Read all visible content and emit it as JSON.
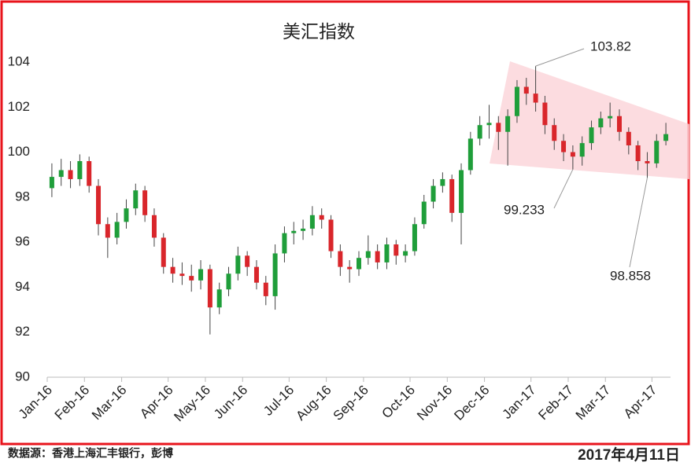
{
  "chart_data": {
    "type": "candlestick",
    "title": "美汇指数",
    "categories": [
      "Jan-16",
      null,
      null,
      null,
      "Feb-16",
      null,
      null,
      null,
      "Mar-16",
      null,
      null,
      null,
      null,
      "Apr-16",
      null,
      null,
      null,
      "May-16",
      null,
      null,
      null,
      "Jun-16",
      null,
      null,
      null,
      null,
      "Jul-16",
      null,
      null,
      null,
      "Aug-16",
      null,
      null,
      null,
      "Sep-16",
      null,
      null,
      null,
      null,
      "Oct-16",
      null,
      null,
      null,
      "Nov-16",
      null,
      null,
      null,
      "Dec-16",
      null,
      null,
      null,
      null,
      "Jan-17",
      null,
      null,
      null,
      "Feb-17",
      null,
      null,
      null,
      "Mar-17",
      null,
      null,
      null,
      null,
      "Apr-17",
      null
    ],
    "open": [
      98.4,
      98.9,
      99.2,
      98.8,
      99.6,
      98.5,
      96.8,
      96.2,
      96.9,
      97.5,
      98.3,
      97.2,
      96.2,
      94.9,
      94.6,
      94.5,
      94.3,
      94.8,
      93.1,
      93.9,
      94.6,
      95.4,
      94.9,
      94.2,
      93.6,
      95.5,
      96.4,
      96.5,
      96.6,
      97.2,
      97.0,
      95.6,
      94.9,
      94.8,
      95.3,
      95.6,
      95.1,
      95.9,
      95.4,
      95.6,
      96.8,
      97.8,
      98.5,
      98.8,
      97.3,
      99.2,
      100.6,
      101.2,
      101.3,
      100.9,
      101.6,
      102.9,
      102.6,
      102.2,
      101.2,
      100.5,
      100.0,
      99.8,
      100.4,
      101.1,
      101.5,
      101.6,
      100.9,
      100.3,
      99.6,
      99.5,
      100.5
    ],
    "high": [
      99.5,
      99.7,
      99.6,
      99.9,
      99.8,
      98.8,
      97.1,
      97.3,
      97.9,
      98.6,
      98.5,
      97.5,
      96.4,
      95.3,
      95.1,
      95.0,
      95.2,
      95.0,
      94.2,
      94.9,
      95.8,
      95.6,
      95.2,
      94.5,
      95.9,
      96.7,
      96.9,
      97.0,
      97.6,
      97.5,
      97.2,
      95.9,
      95.2,
      95.6,
      96.3,
      95.9,
      96.2,
      96.1,
      95.9,
      97.1,
      98.1,
      98.8,
      99.1,
      99.0,
      99.5,
      100.9,
      101.6,
      102.1,
      101.6,
      101.9,
      103.2,
      103.3,
      103.82,
      102.5,
      101.5,
      100.8,
      100.3,
      100.7,
      101.4,
      101.8,
      102.2,
      101.9,
      101.1,
      100.5,
      100.0,
      100.8,
      101.3
    ],
    "low": [
      98.0,
      98.5,
      98.4,
      98.5,
      98.2,
      96.3,
      95.3,
      95.9,
      96.6,
      97.2,
      96.9,
      95.8,
      94.6,
      94.2,
      94.1,
      93.8,
      93.9,
      91.9,
      92.8,
      93.6,
      94.3,
      94.5,
      93.9,
      93.2,
      93.0,
      95.1,
      95.9,
      96.1,
      96.3,
      96.6,
      95.3,
      94.5,
      94.2,
      94.5,
      95.0,
      94.8,
      94.8,
      95.0,
      95.1,
      95.4,
      96.6,
      97.5,
      98.2,
      96.9,
      95.9,
      99.0,
      100.3,
      100.6,
      100.1,
      99.4,
      101.3,
      102.1,
      101.8,
      100.8,
      100.1,
      99.6,
      99.233,
      99.4,
      100.1,
      100.8,
      101.1,
      100.5,
      99.9,
      99.2,
      98.858,
      99.3,
      100.3
    ],
    "close": [
      98.9,
      99.2,
      98.8,
      99.6,
      98.5,
      96.8,
      96.2,
      96.9,
      97.5,
      98.3,
      97.2,
      96.2,
      94.9,
      94.6,
      94.5,
      94.3,
      94.8,
      93.1,
      93.9,
      94.6,
      95.4,
      94.9,
      94.2,
      93.6,
      95.5,
      96.4,
      96.5,
      96.6,
      97.2,
      97.0,
      95.6,
      94.9,
      94.8,
      95.3,
      95.6,
      95.1,
      95.9,
      95.4,
      95.6,
      96.8,
      97.8,
      98.5,
      98.8,
      97.3,
      99.2,
      100.6,
      101.2,
      101.3,
      100.9,
      101.6,
      102.9,
      102.6,
      102.2,
      101.2,
      100.5,
      100.0,
      99.8,
      100.4,
      101.1,
      101.5,
      101.6,
      100.9,
      100.3,
      99.6,
      99.5,
      100.5,
      100.8
    ],
    "up_color": "#1f9e3a",
    "down_color": "#d9262b",
    "wick_color": "#444444",
    "ylim": [
      90,
      104
    ],
    "yticks": [
      90,
      92,
      94,
      96,
      98,
      100,
      102,
      104
    ],
    "grid": false,
    "annotations": [
      103.82,
      99.233,
      98.858
    ]
  },
  "footer": {
    "source": "数据源：香港上海汇丰银行，彭博",
    "date": "2017年4月11日"
  }
}
